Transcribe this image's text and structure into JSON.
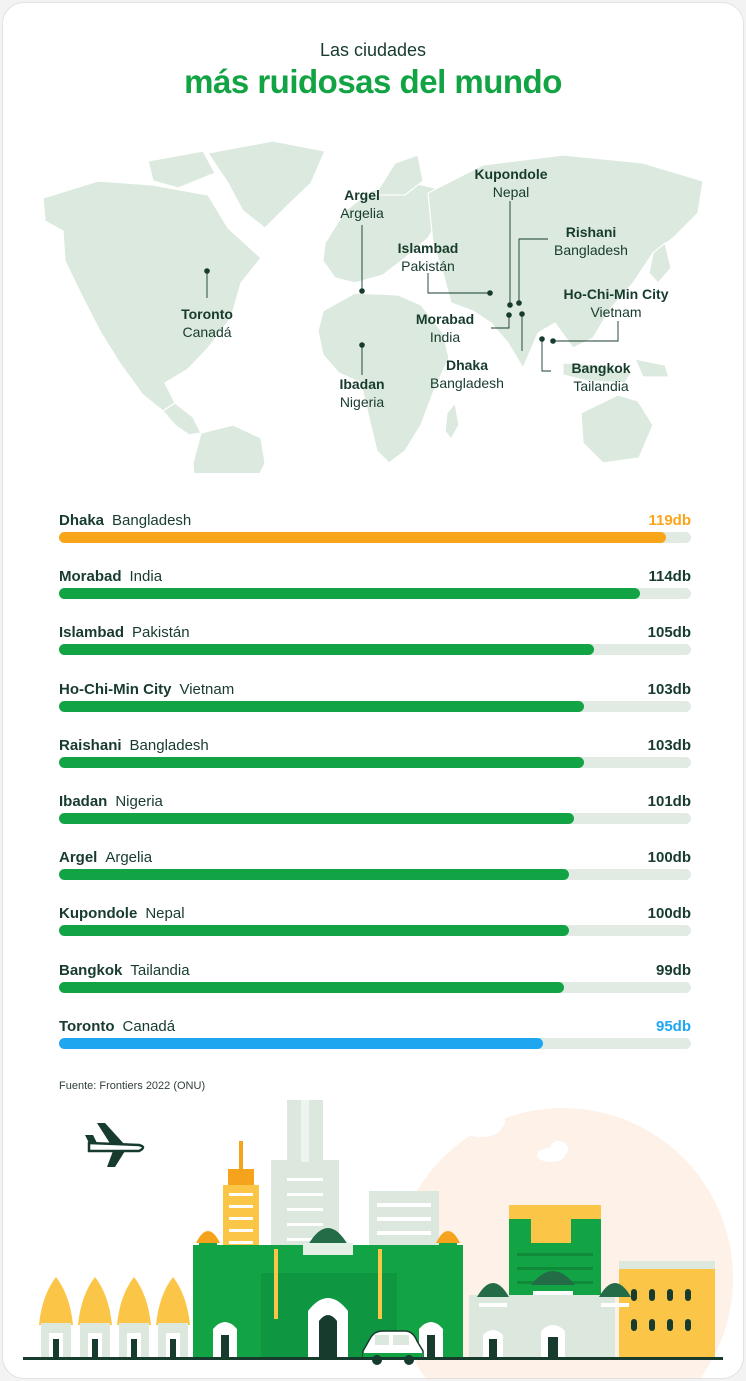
{
  "header": {
    "subtitle": "Las ciudades",
    "title": "más ruidosas del mundo"
  },
  "map_labels": [
    {
      "city": "Toronto",
      "country": "Canadá"
    },
    {
      "city": "Argel",
      "country": "Argelia"
    },
    {
      "city": "Kupondole",
      "country": "Nepal"
    },
    {
      "city": "Islambad",
      "country": "Pakistán"
    },
    {
      "city": "Rishani",
      "country": "Bangladesh"
    },
    {
      "city": "Ho-Chi-Min City",
      "country": "Vietnam"
    },
    {
      "city": "Morabad",
      "country": "India"
    },
    {
      "city": "Dhaka",
      "country": "Bangladesh"
    },
    {
      "city": "Bangkok",
      "country": "Tailandia"
    },
    {
      "city": "Ibadan",
      "country": "Nigeria"
    }
  ],
  "chart_data": {
    "type": "bar",
    "orientation": "horizontal",
    "unit": "db",
    "xlim": [
      0,
      124
    ],
    "categories": [
      "Dhaka",
      "Morabad",
      "Islambad",
      "Ho-Chi-Min City",
      "Raishani",
      "Ibadan",
      "Argel",
      "Kupondole",
      "Bangkok",
      "Toronto"
    ],
    "countries": [
      "Bangladesh",
      "India",
      "Pakistán",
      "Vietnam",
      "Bangladesh",
      "Nigeria",
      "Argelia",
      "Nepal",
      "Tailandia",
      "Canadá"
    ],
    "values": [
      119,
      114,
      105,
      103,
      103,
      101,
      100,
      100,
      99,
      95
    ],
    "value_labels": [
      "119db",
      "114db",
      "105db",
      "103db",
      "103db",
      "101db",
      "100db",
      "100db",
      "99db",
      "95db"
    ],
    "bar_colors": [
      "#f9a51a",
      "#12a444",
      "#12a444",
      "#12a444",
      "#12a444",
      "#12a444",
      "#12a444",
      "#12a444",
      "#12a444",
      "#1ea7f0"
    ]
  },
  "colors": {
    "green": "#12a444",
    "orange": "#f9a51a",
    "blue": "#1ea7f0",
    "track": "#e1ebe3",
    "map": "#dbe9de",
    "dark": "#173b2d"
  },
  "icons": {
    "plane": "airplane-icon",
    "car": "car-icon"
  },
  "footer": {
    "source": "Fuente: Frontiers 2022 (ONU)"
  }
}
